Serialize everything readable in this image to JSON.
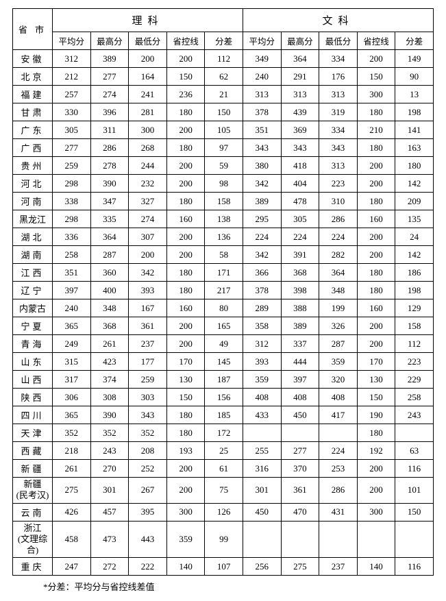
{
  "headers": {
    "science": "理科",
    "arts": "文科",
    "province": "省 市",
    "avg": "平均分",
    "max": "最高分",
    "min": "最低分",
    "ctrl": "省控线",
    "diff": "分差"
  },
  "footnote": "*分差：平均分与省控线差值",
  "rows": [
    {
      "province": "安徽",
      "ps": "1",
      "s": [
        "312",
        "389",
        "200",
        "200",
        "112"
      ],
      "a": [
        "349",
        "364",
        "334",
        "200",
        "149"
      ]
    },
    {
      "province": "北京",
      "ps": "1",
      "s": [
        "212",
        "277",
        "164",
        "150",
        "62"
      ],
      "a": [
        "240",
        "291",
        "176",
        "150",
        "90"
      ]
    },
    {
      "province": "福建",
      "ps": "1",
      "s": [
        "257",
        "274",
        "241",
        "236",
        "21"
      ],
      "a": [
        "313",
        "313",
        "313",
        "300",
        "13"
      ]
    },
    {
      "province": "甘肃",
      "ps": "1",
      "s": [
        "330",
        "396",
        "281",
        "180",
        "150"
      ],
      "a": [
        "378",
        "439",
        "319",
        "180",
        "198"
      ]
    },
    {
      "province": "广东",
      "ps": "1",
      "s": [
        "305",
        "311",
        "300",
        "200",
        "105"
      ],
      "a": [
        "351",
        "369",
        "334",
        "210",
        "141"
      ]
    },
    {
      "province": "广西",
      "ps": "1",
      "s": [
        "277",
        "286",
        "268",
        "180",
        "97"
      ],
      "a": [
        "343",
        "343",
        "343",
        "180",
        "163"
      ]
    },
    {
      "province": "贵州",
      "ps": "1",
      "s": [
        "259",
        "278",
        "244",
        "200",
        "59"
      ],
      "a": [
        "380",
        "418",
        "313",
        "200",
        "180"
      ]
    },
    {
      "province": "河北",
      "ps": "1",
      "s": [
        "298",
        "390",
        "232",
        "200",
        "98"
      ],
      "a": [
        "342",
        "404",
        "223",
        "200",
        "142"
      ]
    },
    {
      "province": "河南",
      "ps": "1",
      "s": [
        "338",
        "347",
        "327",
        "180",
        "158"
      ],
      "a": [
        "389",
        "478",
        "310",
        "180",
        "209"
      ]
    },
    {
      "province": "黑龙江",
      "ps": "0",
      "s": [
        "298",
        "335",
        "274",
        "160",
        "138"
      ],
      "a": [
        "295",
        "305",
        "286",
        "160",
        "135"
      ]
    },
    {
      "province": "湖北",
      "ps": "1",
      "s": [
        "336",
        "364",
        "307",
        "200",
        "136"
      ],
      "a": [
        "224",
        "224",
        "224",
        "200",
        "24"
      ]
    },
    {
      "province": "湖南",
      "ps": "1",
      "s": [
        "258",
        "287",
        "200",
        "200",
        "58"
      ],
      "a": [
        "342",
        "391",
        "282",
        "200",
        "142"
      ]
    },
    {
      "province": "江西",
      "ps": "1",
      "s": [
        "351",
        "360",
        "342",
        "180",
        "171"
      ],
      "a": [
        "366",
        "368",
        "364",
        "180",
        "186"
      ]
    },
    {
      "province": "辽宁",
      "ps": "1",
      "s": [
        "397",
        "400",
        "393",
        "180",
        "217"
      ],
      "a": [
        "378",
        "398",
        "348",
        "180",
        "198"
      ]
    },
    {
      "province": "内蒙古",
      "ps": "0",
      "s": [
        "240",
        "348",
        "167",
        "160",
        "80"
      ],
      "a": [
        "289",
        "388",
        "199",
        "160",
        "129"
      ]
    },
    {
      "province": "宁夏",
      "ps": "1",
      "s": [
        "365",
        "368",
        "361",
        "200",
        "165"
      ],
      "a": [
        "358",
        "389",
        "326",
        "200",
        "158"
      ]
    },
    {
      "province": "青海",
      "ps": "1",
      "s": [
        "249",
        "261",
        "237",
        "200",
        "49"
      ],
      "a": [
        "312",
        "337",
        "287",
        "200",
        "112"
      ]
    },
    {
      "province": "山东",
      "ps": "1",
      "s": [
        "315",
        "423",
        "177",
        "170",
        "145"
      ],
      "a": [
        "393",
        "444",
        "359",
        "170",
        "223"
      ]
    },
    {
      "province": "山西",
      "ps": "1",
      "s": [
        "317",
        "374",
        "259",
        "130",
        "187"
      ],
      "a": [
        "359",
        "397",
        "320",
        "130",
        "229"
      ]
    },
    {
      "province": "陕西",
      "ps": "1",
      "s": [
        "306",
        "308",
        "303",
        "150",
        "156"
      ],
      "a": [
        "408",
        "408",
        "408",
        "150",
        "258"
      ]
    },
    {
      "province": "四川",
      "ps": "1",
      "s": [
        "365",
        "390",
        "343",
        "180",
        "185"
      ],
      "a": [
        "433",
        "450",
        "417",
        "190",
        "243"
      ]
    },
    {
      "province": "天津",
      "ps": "1",
      "s": [
        "352",
        "352",
        "352",
        "180",
        "172"
      ],
      "a": [
        "",
        "",
        "",
        "180",
        ""
      ]
    },
    {
      "province": "西藏",
      "ps": "1",
      "s": [
        "218",
        "243",
        "208",
        "193",
        "25"
      ],
      "a": [
        "255",
        "277",
        "224",
        "192",
        "63"
      ]
    },
    {
      "province": "新疆",
      "ps": "1",
      "s": [
        "261",
        "270",
        "252",
        "200",
        "61"
      ],
      "a": [
        "316",
        "370",
        "253",
        "200",
        "116"
      ]
    },
    {
      "province": "新疆<br>(民考汉)",
      "ps": "ml",
      "s": [
        "275",
        "301",
        "267",
        "200",
        "75"
      ],
      "a": [
        "301",
        "361",
        "286",
        "200",
        "101"
      ]
    },
    {
      "province": "云南",
      "ps": "1",
      "s": [
        "426",
        "457",
        "395",
        "300",
        "126"
      ],
      "a": [
        "450",
        "470",
        "431",
        "300",
        "150"
      ]
    },
    {
      "province": "浙江<br>(文理综合)",
      "ps": "ml",
      "s": [
        "458",
        "473",
        "443",
        "359",
        "99"
      ],
      "a": [
        "",
        "",
        "",
        "",
        ""
      ]
    },
    {
      "province": "重庆",
      "ps": "1",
      "s": [
        "247",
        "272",
        "222",
        "140",
        "107"
      ],
      "a": [
        "256",
        "275",
        "237",
        "140",
        "116"
      ]
    }
  ]
}
